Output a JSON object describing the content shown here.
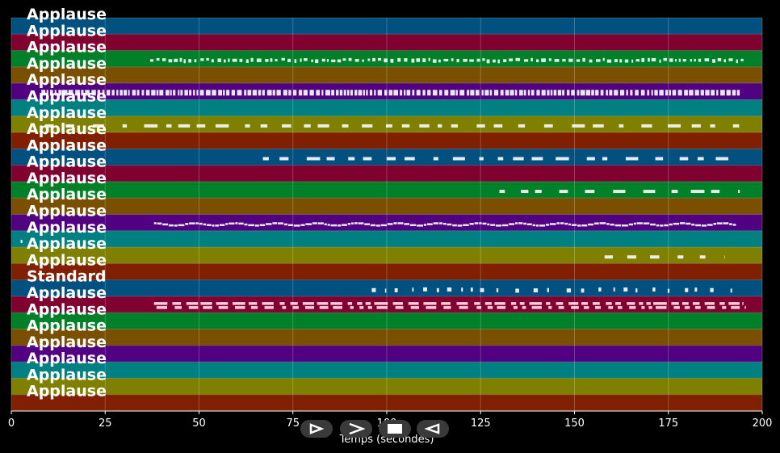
{
  "chart_data": {
    "type": "scatter",
    "xlim": [
      0,
      200
    ],
    "xticks": [
      "0",
      "25",
      "50",
      "75",
      "100",
      "125",
      "150",
      "175",
      "200"
    ],
    "xlabel": "Temps (secondes)",
    "grid": true,
    "lanes": [
      {
        "label": "Applause",
        "color": "#005080",
        "events": []
      },
      {
        "label": "Applause",
        "color": "#800030",
        "events": []
      },
      {
        "label": "Applause",
        "color": "#008028",
        "events": [
          {
            "start": 37,
            "end": 195,
            "style": "dense"
          }
        ]
      },
      {
        "label": "Applause",
        "color": "#7a5000",
        "events": []
      },
      {
        "label": "Applause",
        "color": "#500080",
        "events": [
          {
            "start": 8,
            "end": 194,
            "style": "bars"
          }
        ]
      },
      {
        "label": "Applause",
        "color": "#008080",
        "events": []
      },
      {
        "label": "Applause",
        "color": "#808000",
        "events": [
          {
            "start": 9,
            "end": 194,
            "style": "clusters"
          }
        ]
      },
      {
        "label": "Applause",
        "color": "#802000",
        "events": []
      },
      {
        "label": "Applause",
        "color": "#005080",
        "events": [
          {
            "start": 67,
            "end": 194,
            "style": "clusters"
          }
        ]
      },
      {
        "label": "Applause",
        "color": "#800030",
        "events": []
      },
      {
        "label": "Applause",
        "color": "#008028",
        "events": [
          {
            "start": 130,
            "end": 194,
            "style": "clusters"
          }
        ]
      },
      {
        "label": "Applause",
        "color": "#7a5000",
        "events": []
      },
      {
        "label": "Applause",
        "color": "#500080",
        "events": [
          {
            "start": 38,
            "end": 193,
            "style": "wave"
          }
        ]
      },
      {
        "label": "Applause",
        "color": "#008080",
        "events": [
          {
            "start": 2.5,
            "end": 2.7,
            "style": "single"
          }
        ]
      },
      {
        "label": "Applause",
        "color": "#808000",
        "events": [
          {
            "start": 158,
            "end": 190,
            "style": "sparse"
          }
        ]
      },
      {
        "label": "Applause",
        "color": "#802000",
        "events": []
      },
      {
        "label": "Standard",
        "color": "#005080",
        "events": [
          {
            "start": 96,
            "end": 192,
            "style": "ticks"
          }
        ]
      },
      {
        "label": "Applause",
        "color": "#800030",
        "events": [
          {
            "start": 38,
            "end": 195,
            "style": "double"
          }
        ]
      },
      {
        "label": "Applause",
        "color": "#008028",
        "events": []
      },
      {
        "label": "Applause",
        "color": "#7a5000",
        "events": []
      },
      {
        "label": "Applause",
        "color": "#500080",
        "events": []
      },
      {
        "label": "Applause",
        "color": "#008080",
        "events": []
      },
      {
        "label": "Applause",
        "color": "#808000",
        "events": []
      },
      {
        "label": "Applause",
        "color": "#802000",
        "events": []
      }
    ]
  },
  "controls": [
    {
      "name": "play-outline-button",
      "icon": "play-outline-icon"
    },
    {
      "name": "next-button",
      "icon": "chevron-right-icon"
    },
    {
      "name": "stop-button",
      "icon": "stop-icon"
    },
    {
      "name": "rewind-button",
      "icon": "triangle-left-icon"
    }
  ]
}
